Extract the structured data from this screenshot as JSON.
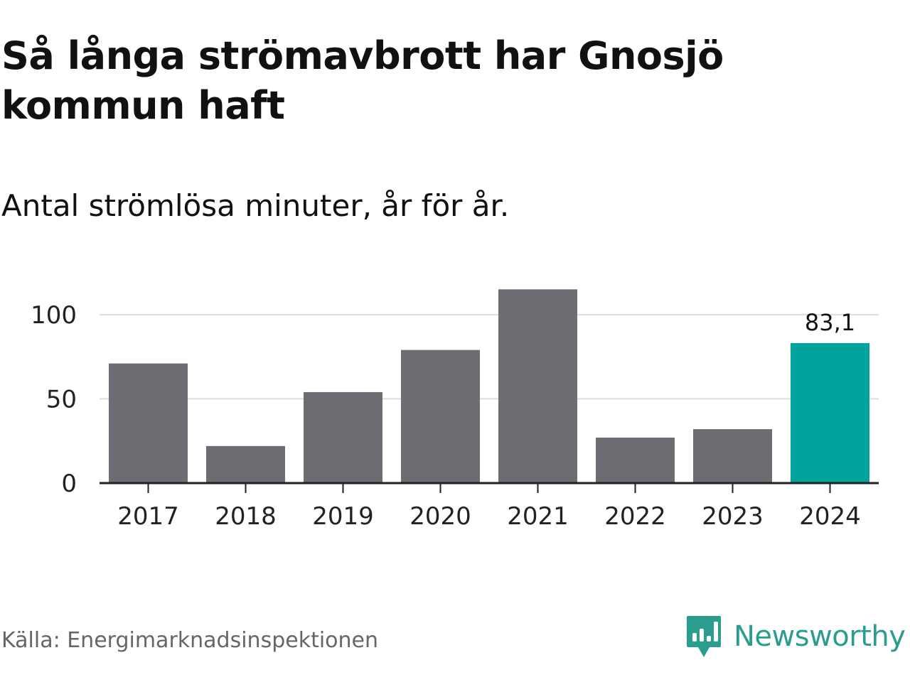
{
  "title": "Så långa strömavbrott har Gnosjö kommun haft",
  "subtitle": "Antal strömlösa minuter, år för år.",
  "source": "Källa: Energimarknadsinspektionen",
  "brand": {
    "name": "Newsworthy",
    "icon": "newsworthy-logo-icon",
    "color": "#2a9d8f"
  },
  "colors": {
    "bar": "#6d6c73",
    "highlight": "#00a49c",
    "grid": "#dddddd",
    "axis": "#222222"
  },
  "chart_data": {
    "type": "bar",
    "title": "Så långa strömavbrott har Gnosjö kommun haft",
    "subtitle": "Antal strömlösa minuter, år för år.",
    "xlabel": "",
    "ylabel": "",
    "categories": [
      "2017",
      "2018",
      "2019",
      "2020",
      "2021",
      "2022",
      "2023",
      "2024"
    ],
    "values": [
      71,
      22,
      54,
      79,
      115,
      27,
      32,
      83.1
    ],
    "highlight_index": 7,
    "data_labels": [
      {
        "index": 7,
        "text": "83,1"
      }
    ],
    "yticks": [
      0,
      50,
      100
    ],
    "ytick_labels": [
      "0",
      "50",
      "100"
    ],
    "ylim": [
      0,
      115
    ],
    "grid": true,
    "legend": "none"
  }
}
